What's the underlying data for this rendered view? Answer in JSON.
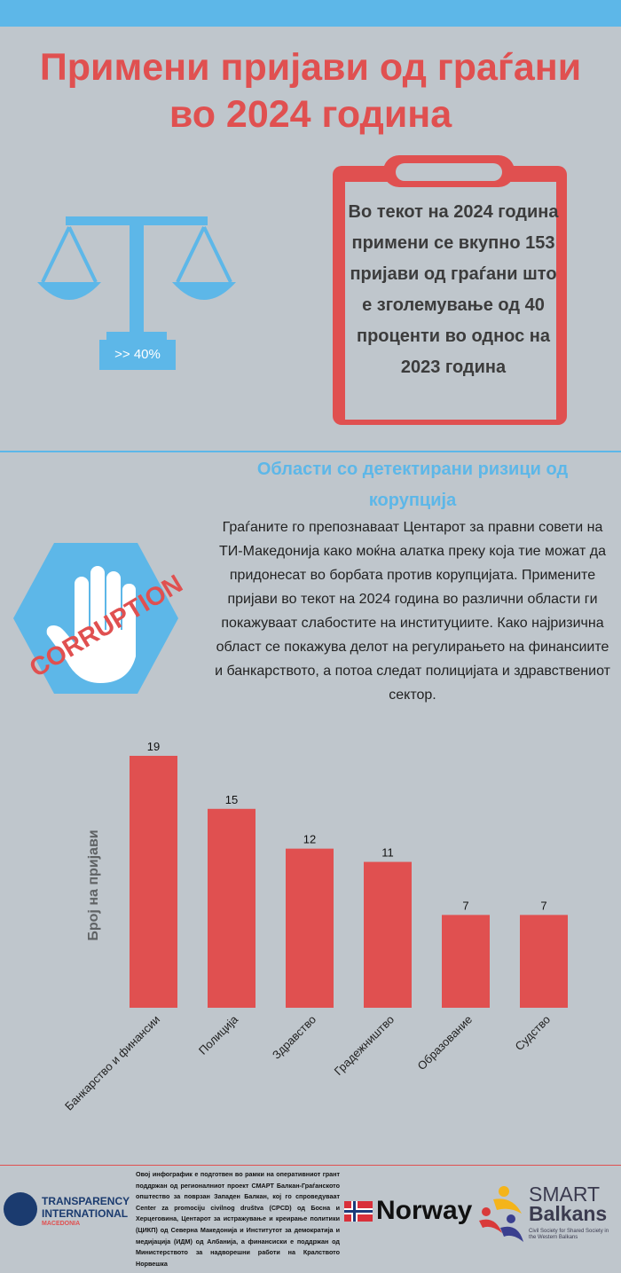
{
  "title": "Примени пријави од граѓани во 2024 година",
  "scale_badge": ">> 40%",
  "clipboard_text": "Во текот на 2024 година примени се вкупно 153 пријави од граѓани што е зголемување од 40 проценти во однос на 2023 година",
  "section": {
    "heading": "Области со детектирани ризици од корупција",
    "body": "Граѓаните го препознаваат Центарот за правни совети на ТИ-Македонија како моќна алатка преку која тие можат да придонесат во борбата против корупцијата. Примените  пријави во текот на 2024 година во различни области ги покажуваат слабостите на институциите. Како најризична област се покажува делот на регулирањето на финансиите и банкарството, а потоа следат полицијата и здравствениот сектор.",
    "stamp": "CORRUPTION"
  },
  "chart_data": {
    "type": "bar",
    "categories": [
      "Банкарство и финансии",
      "Полиција",
      "Здравство",
      "Градежништво",
      "Образование",
      "Судство"
    ],
    "values": [
      19,
      15,
      12,
      11,
      7,
      7
    ],
    "ylabel": "Број на пријави",
    "ylim": [
      0,
      19
    ],
    "data_labels": true,
    "bar_color": "#e05050"
  },
  "footer": {
    "ti_line1": "TRANSPARENCY",
    "ti_line2": "INTERNATIONAL",
    "ti_line3": "MACEDONIA",
    "text": "Овој инфографик е подготвен во рамки на оперативниот грант поддржан од регионалниот проект СМАРТ Балкан-Граѓанското општество за поврзан Западен Балкан, кој го спроведуваат Center za promociju civilnog društva (CPCD) од Босна и Херцеговина, Центарот за истражување и креирање политики (ЦИКП) од Северна Македонија и Институтот за демократија и медијација (ИДМ) од Албанија, а финансиски е поддржан од Министерството за надворешни работи на Кралството Норвешка",
    "norway": "Norway",
    "smart_line1": "SMART",
    "smart_line2": "Balkans",
    "smart_sub": "Civil Society for Shared Society in the Western Balkans"
  },
  "colors": {
    "accent_red": "#e05050",
    "accent_blue": "#5db7e8",
    "background": "#bfc6cc"
  }
}
